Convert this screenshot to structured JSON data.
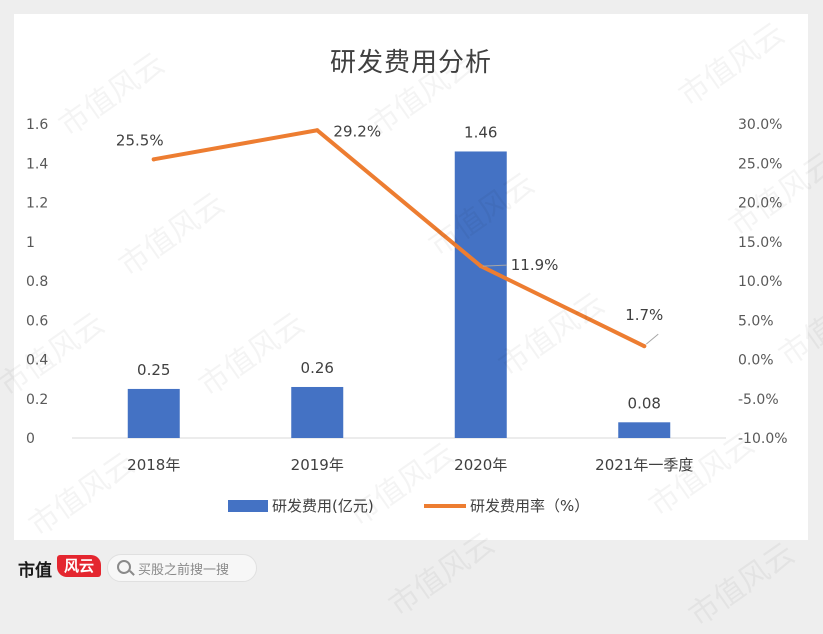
{
  "chart_data": {
    "type": "bar+line",
    "title": "研发费用分析",
    "categories": [
      "2018年",
      "2019年",
      "2020年",
      "2021年一季度"
    ],
    "series": [
      {
        "name": "研发费用(亿元)",
        "type": "bar",
        "axis": "left",
        "values": [
          0.25,
          0.26,
          1.46,
          0.08
        ],
        "labels": [
          "0.25",
          "0.26",
          "1.46",
          "0.08"
        ],
        "color": "#4472c4"
      },
      {
        "name": "研发费用率（%）",
        "type": "line",
        "axis": "right",
        "values": [
          25.5,
          29.2,
          11.9,
          1.7
        ],
        "labels": [
          "25.5%",
          "29.2%",
          "11.9%",
          "1.7%"
        ],
        "color": "#ed7d31"
      }
    ],
    "y_left": {
      "min": 0,
      "max": 1.6,
      "ticks": [
        "0",
        "0.2",
        "0.4",
        "0.6",
        "0.8",
        "1",
        "1.2",
        "1.4",
        "1.6"
      ]
    },
    "y_right": {
      "min": -10,
      "max": 30,
      "ticks": [
        "-10.0%",
        "-5.0%",
        "0.0%",
        "5.0%",
        "10.0%",
        "15.0%",
        "20.0%",
        "25.0%",
        "30.0%"
      ]
    },
    "grid": false,
    "legend_position": "bottom"
  },
  "footer": {
    "brand": "市值",
    "brand_mark": "风云",
    "search_placeholder": "买股之前搜一搜"
  },
  "watermark": "市值风云"
}
